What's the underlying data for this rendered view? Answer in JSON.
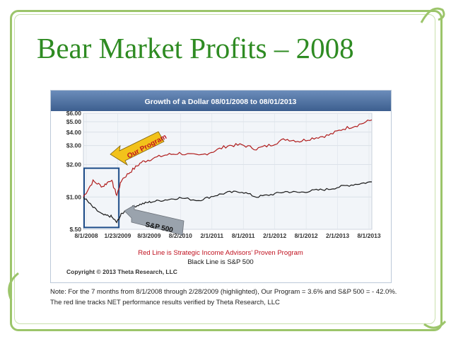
{
  "slide": {
    "title": "Bear Market Profits – 2008",
    "note_lines": [
      "Note: For the 7 months from 8/1/2008 through 2/28/2009 (highlighted), Our Program = 3.6% and S&P 500 = - 42.0%.",
      "The red line tracks NET performance results verified by Theta Research, LLC"
    ]
  },
  "chart_data": {
    "type": "line",
    "title": "Growth of a Dollar 08/01/2008 to 08/01/2013",
    "y_scale": "log",
    "ylim": [
      0.5,
      6.0
    ],
    "y_ticks": [
      "$.50",
      "$1.00",
      "$2.00",
      "$3.00",
      "$4.00",
      "$5.00",
      "$6.00"
    ],
    "y_tick_values": [
      0.5,
      1,
      2,
      3,
      4,
      5,
      6
    ],
    "x_ticks": [
      "8/1/2008",
      "1/23/2009",
      "8/3/2009",
      "8/2/2010",
      "2/1/2011",
      "8/1/2011",
      "2/1/2012",
      "8/1/2012",
      "2/1/2013",
      "8/1/2013"
    ],
    "x_dates": [
      "2008-08-01",
      "2008-10-01",
      "2008-12-01",
      "2009-01-23",
      "2009-02-28",
      "2009-04-01",
      "2009-06-01",
      "2009-08-03",
      "2009-10-01",
      "2010-01-01",
      "2010-04-01",
      "2010-08-02",
      "2010-11-01",
      "2011-02-01",
      "2011-05-01",
      "2011-08-01",
      "2011-11-01",
      "2012-02-01",
      "2012-05-01",
      "2012-08-01",
      "2012-11-01",
      "2013-02-01",
      "2013-05-01",
      "2013-08-01"
    ],
    "series": [
      {
        "color": "#b01c1c",
        "values": [
          1.0,
          1.4,
          1.25,
          1.45,
          1.04,
          1.45,
          1.75,
          2.1,
          2.25,
          2.45,
          2.55,
          2.4,
          2.65,
          3.0,
          3.05,
          2.8,
          3.05,
          3.45,
          3.3,
          3.55,
          3.75,
          4.3,
          4.65,
          5.2
        ]
      },
      {
        "color": "#1a1a1a",
        "values": [
          1.0,
          0.8,
          0.68,
          0.66,
          0.58,
          0.7,
          0.8,
          0.86,
          0.9,
          0.94,
          0.98,
          0.93,
          1.02,
          1.1,
          1.12,
          1.0,
          1.05,
          1.12,
          1.1,
          1.15,
          1.18,
          1.26,
          1.32,
          1.38
        ]
      }
    ],
    "highlight": {
      "from": "2008-08-01",
      "to": "2009-02-28"
    },
    "callouts": {
      "red": "Our Program",
      "black": "S&P 500"
    },
    "caption_red": "Red Line is Strategic Income Advisors’ Proven Program",
    "caption_black": "Black Line is S&P 500",
    "copyright": "Copyright © 2013 Theta Research, LLC",
    "colors": {
      "header": "#4a6fa0",
      "plot_bg": "#f2f5f9",
      "highlight": "#1f4e8a",
      "red_arrow": "#f2c21b",
      "black_arrow": "#9aa3ad"
    }
  }
}
